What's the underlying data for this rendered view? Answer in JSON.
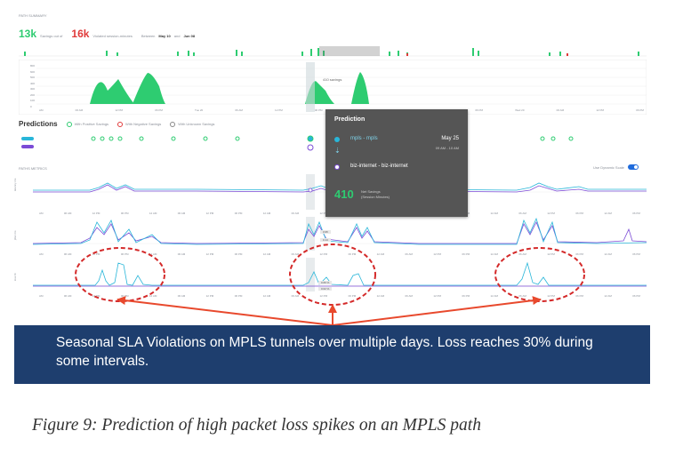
{
  "summary": {
    "title": "PATH SUMMARY",
    "savings_value": "13k",
    "savings_label": "Savings out of",
    "violated_value": "16k",
    "violated_label": "Violated session-minutes",
    "between_label": "Between",
    "date_from": "May 10",
    "and_label": "and",
    "date_to": "Jun 08"
  },
  "mini_chart": {
    "annotation": "410 savings",
    "y_ticks": [
      "800",
      "600",
      "500",
      "400",
      "300",
      "200",
      "100",
      "0"
    ],
    "x_ticks": [
      "AM",
      "06 AM",
      "12 PM",
      "06 PM",
      "Tue 20",
      "06 AM",
      "12 PM",
      "06 PM",
      "Mon 18",
      "06 AM",
      "12 PM",
      "06 PM",
      "Wed 20",
      "06 AM",
      "12 PM",
      "06 PM"
    ]
  },
  "predictions": {
    "title": "Predictions",
    "legend_positive": "With Positive Savings",
    "legend_negative": "With Negative Savings",
    "legend_unknown": "With Unknown Savings"
  },
  "tooltip": {
    "title": "Prediction",
    "from_path": "mpls - mpls",
    "date": "May 25",
    "time_range": "09 AM - 10 AM",
    "to_path": "biz-internet - biz-internet",
    "savings_value": "410",
    "savings_label_1": "Net Savings",
    "savings_label_2": "(Session Minutes)"
  },
  "paths_metrics": {
    "title": "PATHS METRICS",
    "scale_label": "Use Dynamic Scale",
    "latency_label": "latency ms",
    "jitter_label": "jitter ms",
    "loss_label": "loss %",
    "jitter_values": [
      "0.95",
      "0.14"
    ],
    "loss_values": [
      "0.66 %",
      "0.02 %"
    ],
    "x_ticks": [
      "AM",
      "06 AM",
      "12 PM",
      "06 PM",
      "12 AM",
      "06 AM",
      "12 PM",
      "06 PM",
      "12 AM",
      "06 AM",
      "12 PM",
      "06 PM",
      "12 AM",
      "06 AM",
      "12 PM",
      "06 PM",
      "12 AM",
      "06 AM",
      "12 PM",
      "06 PM",
      "12 AM",
      "06 PM"
    ]
  },
  "callout": {
    "text": "Seasonal SLA Violations on MPLS tunnels over multiple days. Loss reaches 30% during some intervals."
  },
  "caption": {
    "text": "Figure 9: Prediction of high packet loss spikes on an MPLS path"
  },
  "colors": {
    "green": "#2ecc71",
    "red": "#e03a3a",
    "teal": "#29b6d9",
    "purple": "#7b4bd6",
    "banner": "#1e3e6e",
    "arrow": "#e8492d",
    "tooltip_bg": "#555555"
  }
}
